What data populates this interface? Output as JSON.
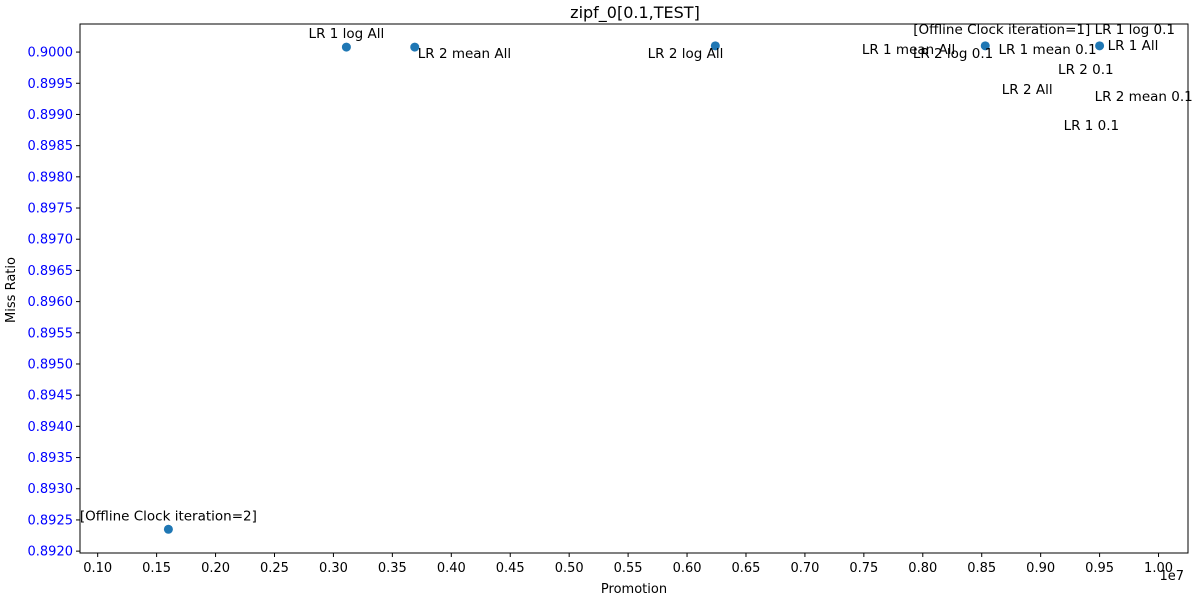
{
  "chart_data": {
    "type": "scatter",
    "title": "zipf_0[0.1,TEST]",
    "xlabel": "Promotion",
    "ylabel": "Miss Ratio",
    "x_offset_label": "1e7",
    "xlim": [
      0.085,
      1.025
    ],
    "ylim": [
      0.89197,
      0.90045
    ],
    "x_ticks": [
      0.1,
      0.15,
      0.2,
      0.25,
      0.3,
      0.35,
      0.4,
      0.45,
      0.5,
      0.55,
      0.6,
      0.65,
      0.7,
      0.75,
      0.8,
      0.85,
      0.9,
      0.95,
      1.0
    ],
    "x_tick_labels": [
      "0.10",
      "0.15",
      "0.20",
      "0.25",
      "0.30",
      "0.35",
      "0.40",
      "0.45",
      "0.50",
      "0.55",
      "0.60",
      "0.65",
      "0.70",
      "0.75",
      "0.80",
      "0.85",
      "0.90",
      "0.95",
      "1.00"
    ],
    "y_ticks": [
      0.892,
      0.8925,
      0.893,
      0.8935,
      0.894,
      0.8945,
      0.895,
      0.8955,
      0.896,
      0.8965,
      0.897,
      0.8975,
      0.898,
      0.8985,
      0.899,
      0.8995,
      0.9
    ],
    "y_tick_labels": [
      "0.8920",
      "0.8925",
      "0.8930",
      "0.8935",
      "0.8940",
      "0.8945",
      "0.8950",
      "0.8955",
      "0.8960",
      "0.8965",
      "0.8970",
      "0.8975",
      "0.8980",
      "0.8985",
      "0.8990",
      "0.8995",
      "0.9000"
    ],
    "marker_color": "#1f77b4",
    "y_tick_color": "#0000ff",
    "grid": false,
    "points": [
      {
        "x": 0.16,
        "y": 0.89235
      },
      {
        "x": 0.311,
        "y": 0.90008
      },
      {
        "x": 0.369,
        "y": 0.90008
      },
      {
        "x": 0.624,
        "y": 0.9001
      },
      {
        "x": 0.853,
        "y": 0.9001
      },
      {
        "x": 0.95,
        "y": 0.9001
      }
    ],
    "annotations": [
      {
        "text": "[Offline Clock iteration=2]",
        "x": 0.16,
        "y": 0.89235,
        "pos": "above"
      },
      {
        "text": "LR 1 log All",
        "x": 0.311,
        "y": 0.90008,
        "pos": "above"
      },
      {
        "text": "LR 2 mean All",
        "x": 0.369,
        "y": 0.90008,
        "pos": "below-right"
      },
      {
        "text": "LR 2 log All",
        "x": 0.624,
        "y": 0.9001,
        "pos": "below-left"
      },
      {
        "text": "[Offline Clock iteration=1]",
        "x": 0.853,
        "y": 0.9001,
        "pos": "above-left"
      },
      {
        "text": "LR 1 mean All",
        "x": 0.853,
        "y": 0.9001,
        "pos": "left"
      },
      {
        "text": "LR 1 mean 0.1",
        "x": 0.95,
        "y": 0.9001,
        "pos": "left"
      },
      {
        "text": "LR 1 log 0.1",
        "x": 0.95,
        "y": 0.9001,
        "pos": "above-right"
      },
      {
        "text": "LR 1 All",
        "x": 0.95,
        "y": 0.9001,
        "pos": "right"
      },
      {
        "text": "LR 2 log 0.1",
        "x": 0.853,
        "y": 0.9001,
        "pos": "below-left"
      },
      {
        "text": "LR 2 0.1",
        "x": 0.95,
        "y": 0.9001,
        "pos": "below"
      },
      {
        "text": "LR 2 All",
        "x": 0.95,
        "y": 0.9001,
        "pos": "below-left-far"
      },
      {
        "text": "LR 2 mean 0.1",
        "x": 0.95,
        "y": 0.9001,
        "pos": "below-right-far"
      },
      {
        "text": "LR 1 0.1",
        "x": 0.95,
        "y": 0.9001,
        "pos": "below-far"
      }
    ]
  }
}
